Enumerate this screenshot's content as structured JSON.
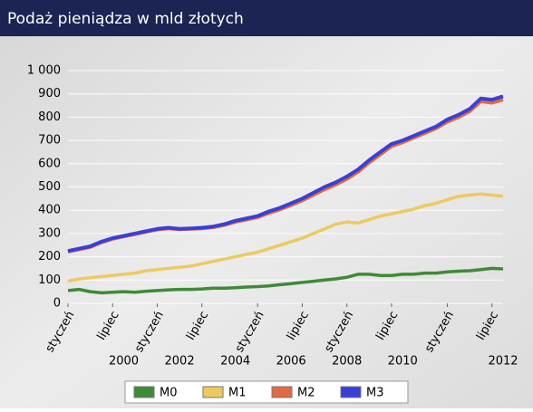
{
  "chart_data": {
    "type": "line",
    "title": "Podaż pieniądza w mld złotych",
    "xlim": [
      0,
      39
    ],
    "xticks": [
      {
        "value": 0,
        "label": "styczeń"
      },
      {
        "value": 4,
        "label": "lipiec"
      },
      {
        "value": 8,
        "label": "styczeń"
      },
      {
        "value": 12,
        "label": "lipiec"
      },
      {
        "value": 17,
        "label": "styczeń"
      },
      {
        "value": 21,
        "label": "lipiec"
      },
      {
        "value": 25,
        "label": "styczeń"
      },
      {
        "value": 29,
        "label": "lipiec"
      },
      {
        "value": 34,
        "label": "styczeń"
      },
      {
        "value": 38,
        "label": "lipiec"
      }
    ],
    "year_labels": [
      {
        "value": 5,
        "label": "2000"
      },
      {
        "value": 10,
        "label": "2002"
      },
      {
        "value": 15,
        "label": "2004"
      },
      {
        "value": 20,
        "label": "2006"
      },
      {
        "value": 25,
        "label": "2008"
      },
      {
        "value": 30,
        "label": "2010"
      },
      {
        "value": 39,
        "label": "2012"
      }
    ],
    "ylim": [
      0,
      1000
    ],
    "yticks": [
      0,
      100,
      200,
      300,
      400,
      500,
      600,
      700,
      800,
      900,
      {
        "value": 1000,
        "label": "1 000"
      }
    ],
    "grid": true,
    "series": [
      {
        "name": "M0",
        "color": "#3f8a36",
        "values": [
          55,
          60,
          50,
          45,
          48,
          50,
          48,
          52,
          55,
          58,
          60,
          60,
          62,
          65,
          65,
          67,
          70,
          72,
          75,
          80,
          85,
          90,
          95,
          100,
          105,
          112,
          125,
          125,
          120,
          120,
          125,
          125,
          130,
          130,
          135,
          138,
          140,
          145,
          150,
          148
        ]
      },
      {
        "name": "M1",
        "color": "#ecca62",
        "values": [
          95,
          105,
          110,
          115,
          120,
          125,
          130,
          140,
          145,
          150,
          155,
          160,
          170,
          180,
          190,
          200,
          210,
          220,
          235,
          250,
          265,
          280,
          300,
          320,
          340,
          350,
          345,
          360,
          375,
          385,
          395,
          405,
          420,
          430,
          445,
          460,
          465,
          470,
          465,
          460
        ]
      },
      {
        "name": "M2",
        "color": "#e06a45",
        "values": [
          222,
          232,
          242,
          262,
          277,
          287,
          297,
          307,
          317,
          322,
          318,
          320,
          322,
          327,
          336,
          350,
          360,
          370,
          388,
          403,
          422,
          442,
          466,
          490,
          510,
          535,
          565,
          605,
          640,
          675,
          692,
          712,
          732,
          752,
          780,
          800,
          825,
          868,
          862,
          875
        ]
      },
      {
        "name": "M3",
        "color": "#3a3fd6",
        "values": [
          225,
          235,
          245,
          265,
          280,
          290,
          300,
          310,
          320,
          325,
          320,
          322,
          325,
          330,
          340,
          355,
          365,
          375,
          395,
          410,
          430,
          450,
          475,
          500,
          520,
          545,
          575,
          615,
          650,
          685,
          700,
          720,
          740,
          760,
          790,
          810,
          835,
          880,
          875,
          890
        ]
      }
    ]
  }
}
